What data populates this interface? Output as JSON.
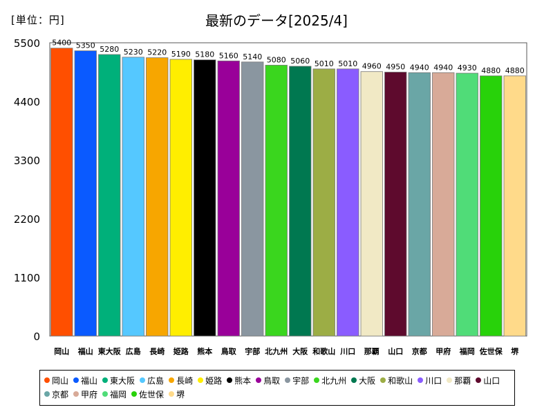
{
  "unit_label": "[単位：円]",
  "chart_data": {
    "type": "bar",
    "title": "最新のデータ[2025/4]",
    "ylim": [
      0,
      5500
    ],
    "yticks": [
      0,
      1100,
      2200,
      3300,
      4400,
      5500
    ],
    "categories": [
      "岡山",
      "福山",
      "東大阪",
      "広島",
      "長崎",
      "姫路",
      "熊本",
      "鳥取",
      "宇部",
      "北九州",
      "大阪",
      "和歌山",
      "川口",
      "那覇",
      "山口",
      "京都",
      "甲府",
      "福岡",
      "佐世保",
      "堺"
    ],
    "values": [
      5400,
      5350,
      5280,
      5230,
      5220,
      5190,
      5180,
      5160,
      5140,
      5080,
      5060,
      5010,
      5010,
      4960,
      4950,
      4940,
      4940,
      4930,
      4880,
      4880
    ],
    "colors": [
      "#ff4f00",
      "#0a5aff",
      "#00b07a",
      "#55c8ff",
      "#f7a600",
      "#ffee00",
      "#000000",
      "#990099",
      "#8a96a0",
      "#3ad61e",
      "#007850",
      "#9cad45",
      "#8a5cff",
      "#f1e9c5",
      "#5e0a2d",
      "#6aa6a6",
      "#d8aa98",
      "#50dc78",
      "#28d20a",
      "#ffda8a"
    ],
    "grid": false,
    "legend_position": "bottom"
  }
}
